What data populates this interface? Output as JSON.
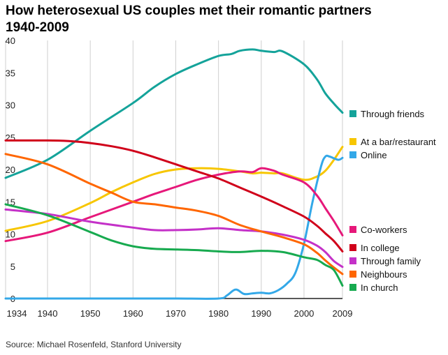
{
  "chart_data": {
    "type": "line",
    "title_line1": "How heterosexual US couples met their romantic partners",
    "title_line2": "1940-2009",
    "source": "Source: Michael Rosenfeld, Stanford University",
    "xlabel": "",
    "ylabel": "",
    "xlim": [
      1934,
      2009
    ],
    "ylim": [
      0,
      40
    ],
    "xticks": [
      1934,
      1940,
      1950,
      1960,
      1970,
      1980,
      1990,
      2000,
      2009
    ],
    "yticks": [
      0,
      5,
      10,
      15,
      20,
      25,
      30,
      35,
      40
    ],
    "grid": "vertical",
    "legend_position": "right",
    "series": [
      {
        "name": "Through friends",
        "color": "#14a39a",
        "x": [
          1934,
          1940,
          1950,
          1960,
          1965,
          1970,
          1975,
          1980,
          1983,
          1985,
          1988,
          1990,
          1993,
          1995,
          2000,
          2003,
          2005,
          2007,
          2009
        ],
        "values": [
          18.7,
          21.5,
          26.0,
          30.3,
          32.8,
          34.8,
          36.3,
          37.6,
          37.9,
          38.4,
          38.6,
          38.4,
          38.2,
          38.3,
          36.3,
          34.0,
          31.8,
          30.2,
          28.8
        ]
      },
      {
        "name": "At a bar/restaurant",
        "color": "#f7c600",
        "x": [
          1934,
          1940,
          1950,
          1955,
          1960,
          1965,
          1970,
          1975,
          1980,
          1985,
          1988,
          1990,
          1993,
          1995,
          2000,
          2003,
          2005,
          2007,
          2009
        ],
        "values": [
          10.5,
          12.0,
          14.8,
          16.5,
          18.0,
          19.3,
          20.0,
          20.2,
          20.1,
          19.7,
          19.4,
          19.5,
          19.4,
          19.4,
          18.4,
          18.9,
          19.8,
          21.5,
          23.5
        ]
      },
      {
        "name": "Online",
        "color": "#33a8e8",
        "x": [
          1934,
          1950,
          1960,
          1970,
          1980,
          1982,
          1984,
          1986,
          1988,
          1990,
          1992,
          1994,
          1996,
          1998,
          2000,
          2002,
          2004,
          2005,
          2006,
          2008,
          2009
        ],
        "values": [
          0,
          0,
          0,
          0,
          0,
          0.5,
          1.4,
          0.7,
          0.8,
          0.9,
          0.8,
          1.3,
          2.3,
          4.0,
          8.5,
          15.0,
          20.5,
          22.0,
          22.0,
          21.5,
          21.8
        ]
      },
      {
        "name": "Co-workers",
        "color": "#e6187a",
        "x": [
          1934,
          1940,
          1950,
          1960,
          1965,
          1970,
          1975,
          1980,
          1985,
          1988,
          1990,
          1993,
          1995,
          2000,
          2003,
          2005,
          2007,
          2009
        ],
        "values": [
          8.9,
          10.2,
          12.6,
          15.0,
          16.2,
          17.3,
          18.4,
          19.2,
          19.7,
          19.6,
          20.2,
          19.8,
          19.2,
          18.0,
          16.0,
          14.0,
          12.0,
          9.8
        ]
      },
      {
        "name": "In college",
        "color": "#d0001a",
        "x": [
          1934,
          1940,
          1945,
          1950,
          1955,
          1960,
          1965,
          1970,
          1975,
          1980,
          1985,
          1990,
          1995,
          2000,
          2003,
          2005,
          2007,
          2009
        ],
        "values": [
          24.5,
          24.5,
          24.4,
          24.1,
          23.6,
          22.9,
          21.9,
          20.8,
          19.7,
          18.6,
          17.2,
          15.8,
          14.3,
          12.7,
          11.3,
          10.1,
          8.9,
          7.3
        ]
      },
      {
        "name": "Through family",
        "color": "#c431c8",
        "x": [
          1934,
          1940,
          1950,
          1960,
          1965,
          1970,
          1975,
          1980,
          1985,
          1990,
          1995,
          2000,
          2003,
          2005,
          2007,
          2009
        ],
        "values": [
          13.8,
          13.1,
          11.9,
          11.0,
          10.6,
          10.6,
          10.7,
          10.9,
          10.6,
          10.4,
          9.9,
          9.1,
          8.2,
          7.2,
          5.8,
          4.9
        ]
      },
      {
        "name": "Neighbours",
        "color": "#ff6600",
        "x": [
          1934,
          1940,
          1950,
          1955,
          1960,
          1965,
          1970,
          1975,
          1980,
          1985,
          1990,
          1995,
          2000,
          2003,
          2005,
          2007,
          2009
        ],
        "values": [
          22.4,
          20.8,
          17.8,
          16.4,
          15.0,
          14.6,
          14.1,
          13.6,
          12.8,
          11.4,
          10.4,
          9.5,
          8.4,
          7.1,
          5.9,
          4.8,
          3.8
        ]
      },
      {
        "name": "In church",
        "color": "#17aa4f",
        "x": [
          1934,
          1940,
          1950,
          1955,
          1960,
          1965,
          1970,
          1975,
          1980,
          1985,
          1990,
          1995,
          2000,
          2003,
          2005,
          2007,
          2009
        ],
        "values": [
          14.6,
          12.9,
          10.3,
          9.0,
          8.1,
          7.7,
          7.6,
          7.5,
          7.3,
          7.2,
          7.4,
          7.2,
          6.4,
          6.0,
          5.2,
          4.4,
          2.0
        ]
      }
    ]
  }
}
